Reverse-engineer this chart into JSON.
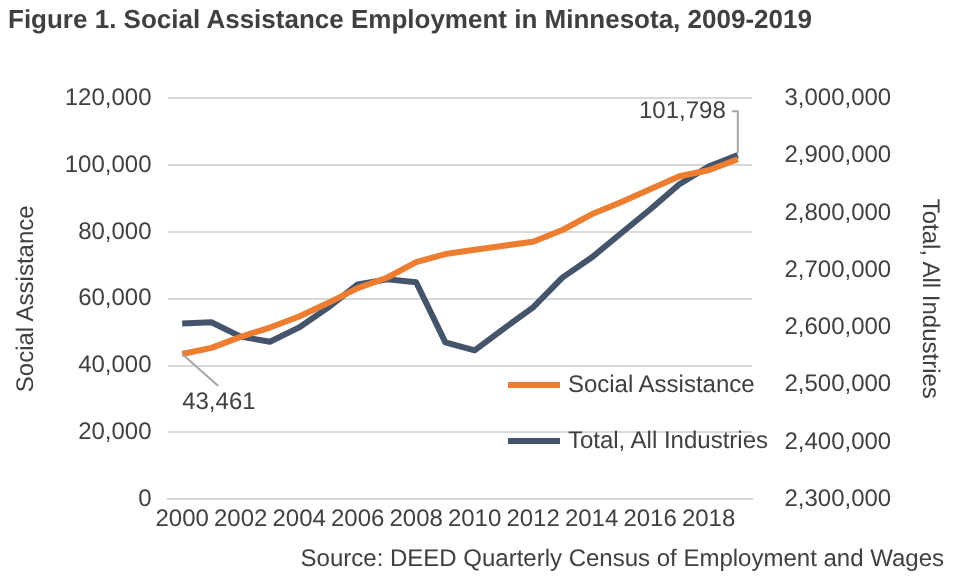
{
  "chart_data": {
    "type": "line",
    "title": "Figure 1. Social Assistance Employment in Minnesota, 2009-2019",
    "ylabel": "Social Assistance",
    "y2label": "Total, All Industries",
    "categories": [
      "2000",
      null,
      "2002",
      null,
      "2004",
      null,
      "2006",
      null,
      "2008",
      null,
      "2010",
      null,
      "2012",
      null,
      "2014",
      null,
      "2016",
      null,
      "2018",
      null
    ],
    "series": [
      {
        "name": "Social Assistance",
        "color": "#ed7d31",
        "values": [
          43461,
          45300,
          48600,
          51400,
          54700,
          58800,
          63200,
          66300,
          71000,
          73400,
          74700,
          75900,
          77100,
          80600,
          85300,
          88900,
          92800,
          96700,
          98500,
          101798
        ],
        "value_labels": [
          "43,461",
          null,
          null,
          null,
          null,
          null,
          null,
          null,
          null,
          null,
          null,
          null,
          null,
          null,
          null,
          null,
          null,
          null,
          null,
          "101,798"
        ]
      },
      {
        "name": "Total, All Industries",
        "color": "#44546a",
        "axis": "y2",
        "values": [
          2607000,
          2609000,
          2584000,
          2575000,
          2600000,
          2635000,
          2675000,
          2684000,
          2679000,
          2574000,
          2560000,
          2598000,
          2635000,
          2687000,
          2722000,
          2764000,
          2806000,
          2850000,
          2881000,
          2901000
        ]
      }
    ],
    "ylim": [
      0,
      120000
    ],
    "yticks": [
      0,
      {
        "value": 20000,
        "label": "20,000"
      },
      {
        "value": 40000,
        "label": "40,000"
      },
      {
        "value": 60000,
        "label": "60,000"
      },
      {
        "value": 80000,
        "label": "80,000"
      },
      {
        "value": 100000,
        "label": "100,000"
      },
      {
        "value": 120000,
        "label": "120,000"
      }
    ],
    "y2lim": [
      2300000,
      3000000
    ],
    "y2ticks": [
      {
        "value": 2300000,
        "label": "2,300,000"
      },
      {
        "value": 2400000,
        "label": "2,400,000"
      },
      {
        "value": 2500000,
        "label": "2,500,000"
      },
      {
        "value": 2600000,
        "label": "2,600,000"
      },
      {
        "value": 2700000,
        "label": "2,700,000"
      },
      {
        "value": 2800000,
        "label": "2,800,000"
      },
      {
        "value": 2900000,
        "label": "2,900,000"
      },
      {
        "value": 3000000,
        "label": "3,000,000"
      }
    ],
    "grid": "y",
    "legend": "bottom right",
    "marker": "none",
    "line_style": "solid",
    "annotations": [
      "Source: DEED Quarterly Census of Employment and Wages"
    ]
  }
}
